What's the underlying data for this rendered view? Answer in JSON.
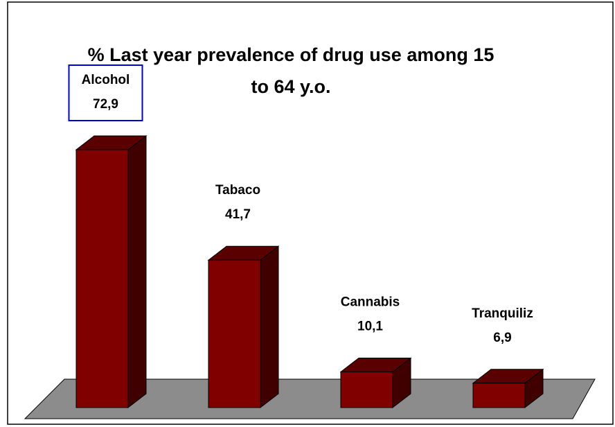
{
  "chart_data": {
    "type": "bar",
    "title_lines": [
      "% Last year prevalence of drug use among 15",
      "to 64  y.o."
    ],
    "categories": [
      "Alcohol",
      "Tabaco",
      "Cannabis",
      "Tranquiliz"
    ],
    "values": [
      72.9,
      41.7,
      10.1,
      6.9
    ],
    "value_labels": [
      "72,9",
      "41,7",
      "10,1",
      "6,9"
    ],
    "highlighted_category": "Alcohol",
    "xlabel": "",
    "ylabel": "",
    "ylim": [
      0,
      72.9
    ],
    "grid": false,
    "legend": "none",
    "three_d": true,
    "colors": {
      "bar_front": "#800000",
      "bar_top": "#5a0000",
      "bar_side": "#400000",
      "floor": "#8c8c8c",
      "highlight_box": "#0000cc",
      "border": "#000000"
    }
  }
}
